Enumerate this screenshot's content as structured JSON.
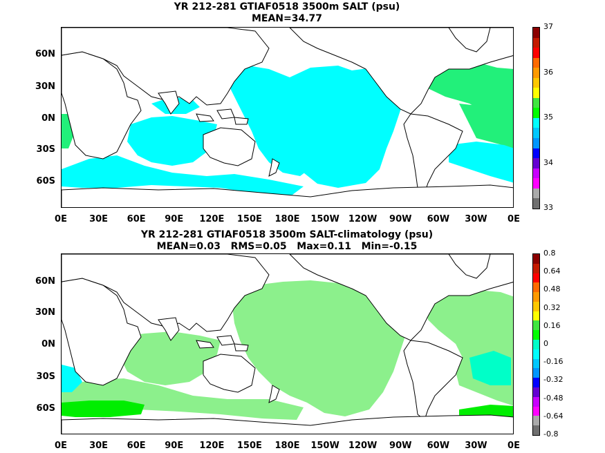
{
  "panel1": {
    "title_line1": "YR 212-281 GTIAF0518 3500m SALT (psu)",
    "title_line2": "MEAN=34.77",
    "lat_labels": [
      "60N",
      "30N",
      "0N",
      "30S",
      "60S"
    ],
    "lon_labels": [
      "0E",
      "30E",
      "60E",
      "90E",
      "120E",
      "150E",
      "180E",
      "150W",
      "120W",
      "90W",
      "60W",
      "30W",
      "0E"
    ],
    "colorbar_labels": [
      "37",
      "36",
      "35",
      "34",
      "33"
    ],
    "colorbar_colors": [
      "#8b0000",
      "#c41a00",
      "#ff0000",
      "#ff6a00",
      "#ff9a00",
      "#ffc800",
      "#ffff00",
      "#40e640",
      "#00ff00",
      "#00ffff",
      "#00c8ff",
      "#0096ff",
      "#0000ff",
      "#6400d2",
      "#c800ff",
      "#ff00ff",
      "#aaaaaa",
      "#707070"
    ]
  },
  "panel2": {
    "title_line1": "YR 212-281 GTIAF0518 3500m SALT-climatology (psu)",
    "title_line2": "MEAN=0.03   RMS=0.05   Max=0.11   Min=-0.15",
    "lat_labels": [
      "60N",
      "30N",
      "0N",
      "30S",
      "60S"
    ],
    "lon_labels": [
      "0E",
      "30E",
      "60E",
      "90E",
      "120E",
      "150E",
      "180E",
      "150W",
      "120W",
      "90W",
      "60W",
      "30W",
      "0E"
    ],
    "colorbar_labels": [
      "0.8",
      "0.64",
      "0.48",
      "0.32",
      "0.16",
      "0",
      "-0.16",
      "-0.32",
      "-0.48",
      "-0.64",
      "-0.8"
    ],
    "colorbar_colors": [
      "#8b0000",
      "#c41a00",
      "#ff0000",
      "#ff6a00",
      "#ff9a00",
      "#ffc800",
      "#ffff00",
      "#40e640",
      "#00ff00",
      "#00ffc8",
      "#00ffff",
      "#00c8ff",
      "#0096ff",
      "#0000ff",
      "#6400d2",
      "#c800ff",
      "#ff00ff",
      "#aaaaaa",
      "#707070"
    ]
  },
  "colors": {
    "salt_cyan": "#00ffff",
    "salt_green": "#22f07a",
    "diff_light_green": "#8cf08c",
    "diff_bright_green": "#00ee00",
    "diff_cyan": "#00ffff",
    "diff_teal": "#00ffc8"
  }
}
